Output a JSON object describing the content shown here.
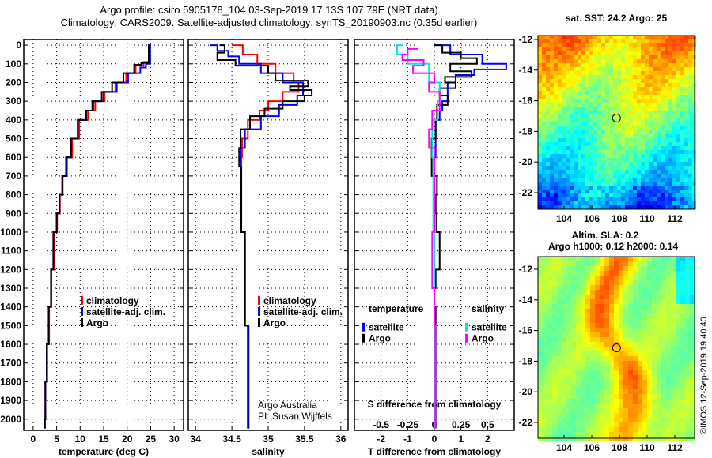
{
  "title_line1": "Argo profile: csiro 5905178_104 03-Sep-2019 17.13S 107.79E (NRT data)",
  "title_line2": "Climatology: CARS2009. Satellite-adjusted climatology: synTS_20190903.nc (0.35d earlier)",
  "credit_line1": "Argo Australia",
  "credit_line2": "PI: Susan Wijffels",
  "imos_stamp": "©IMOS 12-Sep-2019 19:40:40",
  "colors": {
    "climatology": "#ff0000",
    "satellite": "#0000ff",
    "argo": "#000000",
    "sal_satellite": "#00e5e5",
    "sal_argo": "#ff00ff"
  },
  "chart_data": [
    {
      "type": "line",
      "id": "temperature",
      "xlabel": "temperature (deg C)",
      "xticks": [
        0,
        5,
        10,
        15,
        20,
        25,
        30
      ],
      "xlim": [
        -2,
        32
      ],
      "ylim": [
        -30,
        2060
      ],
      "yticks": [
        0,
        100,
        200,
        300,
        400,
        500,
        600,
        700,
        800,
        900,
        1000,
        1100,
        1200,
        1300,
        1400,
        1500,
        1600,
        1700,
        1800,
        1900,
        2000
      ],
      "grid": true,
      "legend": [
        "climatology",
        "satellite-adj. clim.",
        "Argo"
      ],
      "series": [
        {
          "name": "climatology",
          "color": "#ff0000",
          "points": [
            [
              0,
              25
            ],
            [
              90,
              24.6
            ],
            [
              110,
              23.5
            ],
            [
              150,
              21.8
            ],
            [
              200,
              19.8
            ],
            [
              250,
              17.5
            ],
            [
              300,
              15.2
            ],
            [
              350,
              13.2
            ],
            [
              400,
              11.8
            ],
            [
              500,
              9.8
            ],
            [
              600,
              8.3
            ],
            [
              700,
              7.2
            ],
            [
              800,
              6.3
            ],
            [
              900,
              5.7
            ],
            [
              1000,
              5.1
            ],
            [
              1200,
              4.4
            ],
            [
              1400,
              3.9
            ],
            [
              1600,
              3.4
            ],
            [
              1800,
              3.0
            ],
            [
              2000,
              2.6
            ],
            [
              2050,
              2.5
            ]
          ]
        },
        {
          "name": "satellite-adj. clim.",
          "color": "#0000ff",
          "points": [
            [
              0,
              25.1
            ],
            [
              100,
              24.9
            ],
            [
              120,
              24.0
            ],
            [
              150,
              22.8
            ],
            [
              200,
              20.2
            ],
            [
              250,
              17.8
            ],
            [
              300,
              15.0
            ],
            [
              350,
              12.8
            ],
            [
              400,
              11.4
            ],
            [
              500,
              9.5
            ],
            [
              600,
              8.1
            ],
            [
              700,
              7.1
            ],
            [
              800,
              6.2
            ],
            [
              900,
              5.6
            ],
            [
              1000,
              5.0
            ],
            [
              1200,
              4.3
            ],
            [
              1400,
              3.8
            ],
            [
              1600,
              3.3
            ],
            [
              1800,
              2.9
            ],
            [
              2000,
              2.6
            ],
            [
              2050,
              2.5
            ]
          ]
        },
        {
          "name": "Argo",
          "color": "#000000",
          "points": [
            [
              0,
              24.8
            ],
            [
              95,
              24.6
            ],
            [
              105,
              23.0
            ],
            [
              150,
              21.5
            ],
            [
              200,
              19.2
            ],
            [
              250,
              16.8
            ],
            [
              300,
              14.6
            ],
            [
              350,
              12.6
            ],
            [
              400,
              11.3
            ],
            [
              500,
              9.5
            ],
            [
              600,
              8.1
            ],
            [
              700,
              7.0
            ],
            [
              800,
              6.2
            ],
            [
              900,
              5.6
            ],
            [
              1000,
              5.0
            ],
            [
              1200,
              4.3
            ],
            [
              1400,
              3.8
            ],
            [
              1600,
              3.3
            ],
            [
              1800,
              2.9
            ],
            [
              2000,
              2.6
            ],
            [
              2050,
              2.5
            ]
          ]
        }
      ]
    },
    {
      "type": "line",
      "id": "salinity",
      "xlabel": "salinity",
      "xticks": [
        34,
        34.5,
        35,
        35.5,
        36
      ],
      "xlim": [
        33.9,
        36.1
      ],
      "ylim": [
        -30,
        2060
      ],
      "grid": true,
      "legend": [
        "climatology",
        "satellite-adj. clim.",
        "Argo"
      ],
      "series": [
        {
          "name": "climatology",
          "color": "#ff0000",
          "points": [
            [
              0,
              34.5
            ],
            [
              50,
              34.65
            ],
            [
              100,
              34.85
            ],
            [
              150,
              35.1
            ],
            [
              200,
              35.35
            ],
            [
              250,
              35.42
            ],
            [
              300,
              35.2
            ],
            [
              350,
              35.0
            ],
            [
              400,
              34.88
            ],
            [
              500,
              34.72
            ],
            [
              600,
              34.64
            ],
            [
              700,
              34.63
            ],
            [
              1000,
              34.63
            ],
            [
              1500,
              34.68
            ],
            [
              2000,
              34.73
            ],
            [
              2050,
              34.73
            ]
          ]
        },
        {
          "name": "satellite-adj. clim.",
          "color": "#0000ff",
          "points": [
            [
              0,
              34.2
            ],
            [
              30,
              34.3
            ],
            [
              60,
              34.45
            ],
            [
              100,
              34.6
            ],
            [
              150,
              34.9
            ],
            [
              200,
              35.2
            ],
            [
              270,
              35.48
            ],
            [
              320,
              35.4
            ],
            [
              380,
              35.15
            ],
            [
              450,
              34.9
            ],
            [
              550,
              34.68
            ],
            [
              650,
              34.62
            ],
            [
              1000,
              34.63
            ],
            [
              1500,
              34.68
            ],
            [
              2000,
              34.73
            ],
            [
              2050,
              34.73
            ]
          ]
        },
        {
          "name": "Argo",
          "color": "#000000",
          "points": [
            [
              0,
              34.33
            ],
            [
              40,
              34.4
            ],
            [
              80,
              34.3
            ],
            [
              110,
              34.55
            ],
            [
              150,
              35.0
            ],
            [
              190,
              35.1
            ],
            [
              220,
              35.55
            ],
            [
              240,
              35.3
            ],
            [
              270,
              35.6
            ],
            [
              300,
              35.5
            ],
            [
              340,
              35.2
            ],
            [
              380,
              34.95
            ],
            [
              450,
              34.75
            ],
            [
              550,
              34.62
            ],
            [
              650,
              34.6
            ],
            [
              1000,
              34.63
            ],
            [
              1500,
              34.68
            ],
            [
              2000,
              34.72
            ],
            [
              2050,
              34.72
            ]
          ]
        }
      ]
    },
    {
      "type": "line",
      "id": "difference",
      "xlabel": "T difference from climatology",
      "xticks": [
        -2,
        -1,
        0,
        1,
        2
      ],
      "xlim": [
        -3,
        3
      ],
      "x2label": "S difference from climatology",
      "x2ticks": [
        -0.5,
        -0.25,
        0,
        0.25,
        0.5
      ],
      "x2lim": [
        -0.75,
        0.75
      ],
      "ylim": [
        -30,
        2060
      ],
      "grid": true,
      "legend_temperature": {
        "title": "temperature",
        "items": [
          "satellite",
          "Argo"
        ]
      },
      "legend_salinity": {
        "title": "salinity",
        "items": [
          "satellite",
          "Argo"
        ]
      },
      "series": [
        {
          "name": "T satellite",
          "axis": "T",
          "color": "#0000ff",
          "points": [
            [
              0,
              0
            ],
            [
              50,
              0.6
            ],
            [
              100,
              1.8
            ],
            [
              130,
              2.7
            ],
            [
              160,
              1.5
            ],
            [
              200,
              0.8
            ],
            [
              250,
              0.5
            ],
            [
              300,
              0.5
            ],
            [
              350,
              0.3
            ],
            [
              400,
              0.2
            ],
            [
              600,
              0.05
            ],
            [
              1000,
              0
            ],
            [
              2050,
              0
            ]
          ]
        },
        {
          "name": "T Argo",
          "axis": "T",
          "color": "#000000",
          "points": [
            [
              0,
              0
            ],
            [
              40,
              0.3
            ],
            [
              70,
              1.0
            ],
            [
              100,
              1.6
            ],
            [
              140,
              0.6
            ],
            [
              170,
              1.4
            ],
            [
              200,
              0.4
            ],
            [
              230,
              0.8
            ],
            [
              270,
              0.2
            ],
            [
              320,
              0.5
            ],
            [
              400,
              0.1
            ],
            [
              500,
              0.05
            ],
            [
              700,
              -0.1
            ],
            [
              800,
              0.1
            ],
            [
              900,
              0.05
            ],
            [
              1000,
              0.08
            ],
            [
              1200,
              0.2
            ],
            [
              1300,
              0.05
            ],
            [
              1400,
              0.0
            ],
            [
              1600,
              0.05
            ],
            [
              2000,
              0.05
            ],
            [
              2050,
              0.05
            ]
          ]
        },
        {
          "name": "S satellite",
          "axis": "S",
          "color": "#00e5e5",
          "points": [
            [
              0,
              -0.3
            ],
            [
              50,
              -0.35
            ],
            [
              100,
              -0.25
            ],
            [
              150,
              -0.05
            ],
            [
              200,
              -0.05
            ],
            [
              300,
              0.05
            ],
            [
              400,
              0.03
            ],
            [
              600,
              -0.02
            ],
            [
              1000,
              -0.01
            ],
            [
              2050,
              0
            ]
          ]
        },
        {
          "name": "S Argo",
          "axis": "S",
          "color": "#ff00ff",
          "points": [
            [
              20,
              -0.15
            ],
            [
              50,
              -0.25
            ],
            [
              80,
              -0.3
            ],
            [
              110,
              -0.1
            ],
            [
              150,
              -0.2
            ],
            [
              200,
              0.0
            ],
            [
              250,
              -0.05
            ],
            [
              350,
              0.05
            ],
            [
              450,
              -0.02
            ],
            [
              550,
              -0.05
            ],
            [
              650,
              0.0
            ],
            [
              1000,
              0.0
            ],
            [
              1300,
              -0.02
            ],
            [
              1500,
              0
            ],
            [
              2050,
              0.01
            ]
          ]
        }
      ]
    },
    {
      "type": "heatmap",
      "id": "sst_map",
      "title": "sat. SST: 24.2 Argo: 25",
      "xticks": [
        104,
        106,
        108,
        110,
        112
      ],
      "yticks": [
        -12,
        -14,
        -16,
        -18,
        -20,
        -22
      ],
      "xlim": [
        102.6,
        113.7
      ],
      "ylim": [
        -23.3,
        -11.6
      ],
      "marker": [
        107.79,
        -17.13
      ],
      "value_range": [
        22.5,
        26
      ]
    },
    {
      "type": "heatmap",
      "id": "sla_map",
      "title_line1": "Altim. SLA: 0.2",
      "title_line2": "Argo h1000: 0.12 h2000: 0.14",
      "xticks": [
        104,
        106,
        108,
        110,
        112
      ],
      "yticks": [
        -12,
        -14,
        -16,
        -18,
        -20,
        -22
      ],
      "xlim": [
        102.6,
        113.7
      ],
      "ylim": [
        -23.3,
        -11.6
      ],
      "marker": [
        107.79,
        -17.13
      ],
      "value_range": [
        -0.1,
        0.4
      ]
    }
  ]
}
